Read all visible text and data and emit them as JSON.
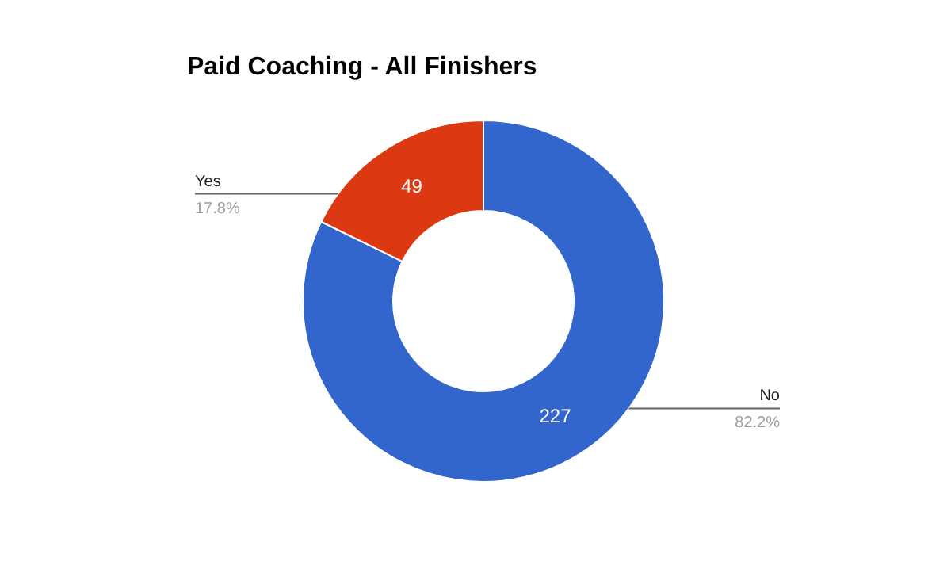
{
  "chart_data": {
    "type": "donut",
    "title": "Paid Coaching - All Finishers",
    "categories": [
      "No",
      "Yes"
    ],
    "values": [
      227,
      49
    ],
    "colors": [
      "#3366cc",
      "#dc3912"
    ],
    "data_labels": true,
    "annotations": [
      "82.2%",
      "17.8%"
    ],
    "legend": false
  }
}
